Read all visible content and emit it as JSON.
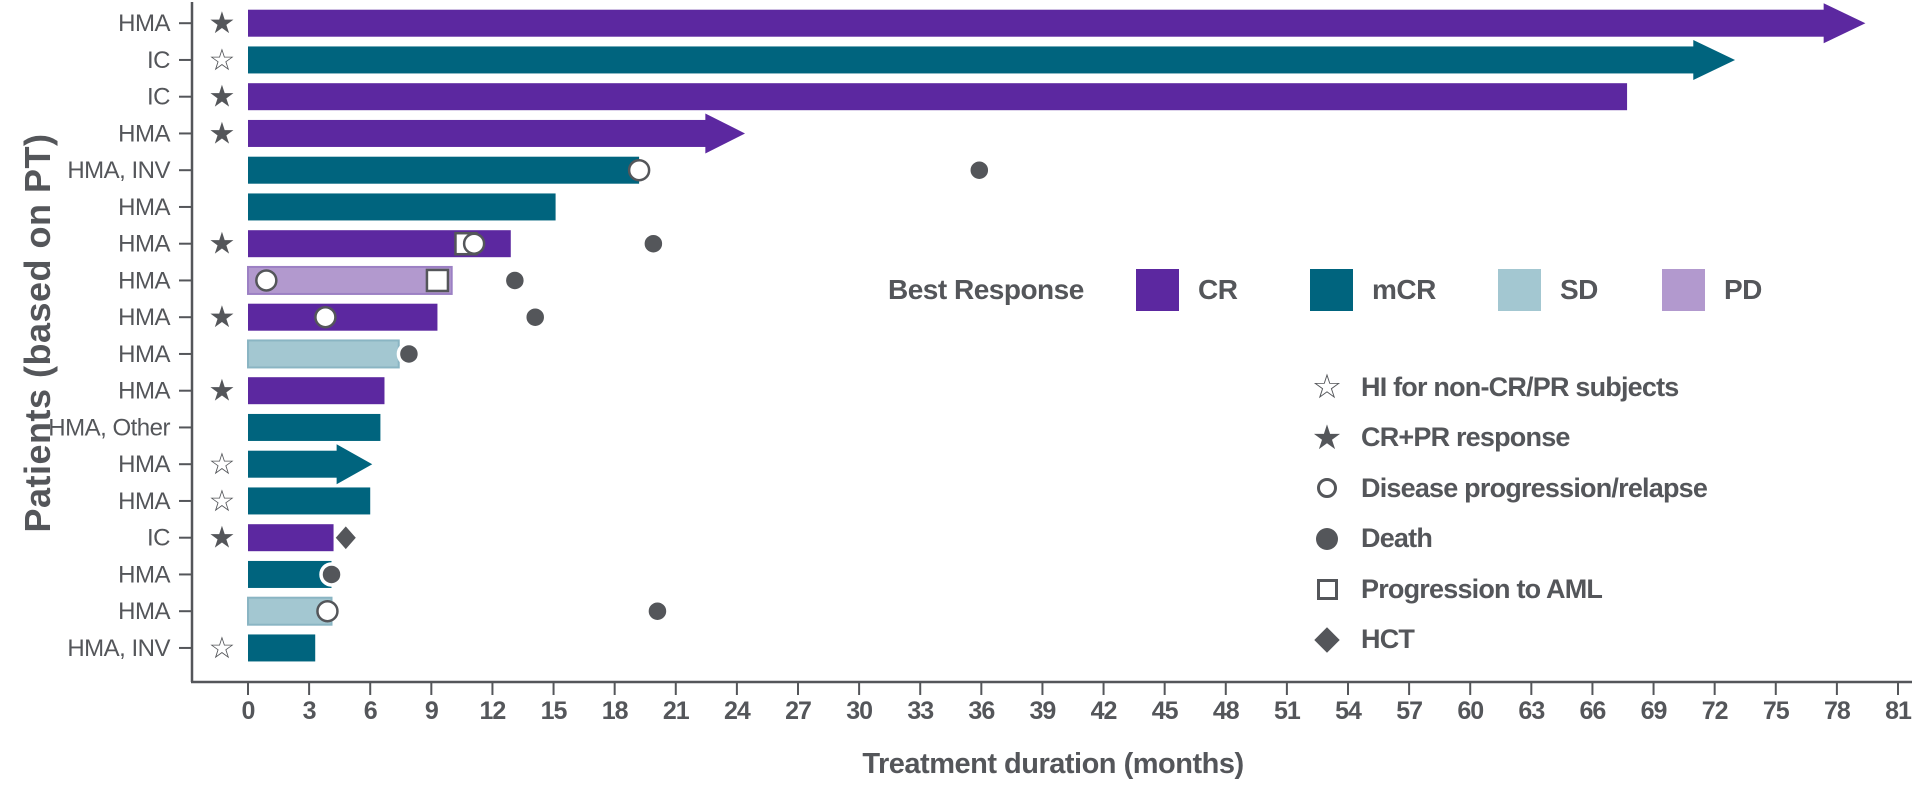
{
  "chart_data": {
    "type": "bar",
    "subtype": "horizontal-swimmer",
    "title": "",
    "xlabel": "Treatment duration (months)",
    "ylabel": "Patients (based on PT)",
    "xlim": [
      0,
      81
    ],
    "x_ticks": [
      0,
      3,
      6,
      9,
      12,
      15,
      18,
      21,
      24,
      27,
      30,
      33,
      36,
      39,
      42,
      45,
      48,
      51,
      54,
      57,
      60,
      63,
      66,
      69,
      72,
      75,
      78,
      81
    ],
    "grid": false,
    "colors": {
      "CR": "#5C28A0",
      "mCR": "#00647E",
      "SD": "#A3C7D1",
      "PD": "#B299CE",
      "SD_border": "#8AB5C3",
      "PD_border": "#9C80C4",
      "axis_gray": "#54565A",
      "marker_white": "#FFFFFF"
    },
    "best_response_legend": {
      "title": "Best Response",
      "items": [
        {
          "label": "CR",
          "color": "#5C28A0"
        },
        {
          "label": "mCR",
          "color": "#00647E"
        },
        {
          "label": "SD",
          "color": "#A3C7D1"
        },
        {
          "label": "PD",
          "color": "#B299CE"
        }
      ]
    },
    "symbol_legend": [
      {
        "symbol": "star-open",
        "label": "HI for non-CR/PR subjects"
      },
      {
        "symbol": "star-filled",
        "label": "CR+PR response"
      },
      {
        "symbol": "circle-open",
        "label": "Disease progression/relapse"
      },
      {
        "symbol": "circle-filled",
        "label": "Death"
      },
      {
        "symbol": "square-open",
        "label": "Progression to AML"
      },
      {
        "symbol": "diamond-filled",
        "label": "HCT"
      }
    ],
    "patients": [
      {
        "label": "HMA",
        "star": "filled",
        "response": "CR",
        "duration": 77.4,
        "arrow_to": 79.4,
        "markers": []
      },
      {
        "label": "IC",
        "star": "open",
        "response": "mCR",
        "duration": 71.0,
        "arrow_to": 73.0,
        "markers": []
      },
      {
        "label": "IC",
        "star": "filled",
        "response": "CR",
        "duration": 67.7,
        "arrow_to": null,
        "markers": []
      },
      {
        "label": "HMA",
        "star": "filled",
        "response": "CR",
        "duration": 22.5,
        "arrow_to": 24.4,
        "markers": []
      },
      {
        "label": "HMA, INV",
        "star": null,
        "response": "mCR",
        "duration": 19.2,
        "arrow_to": null,
        "markers": [
          {
            "type": "progression",
            "month": 19.2
          },
          {
            "type": "death",
            "month": 35.9
          }
        ]
      },
      {
        "label": "HMA",
        "star": null,
        "response": "mCR",
        "duration": 15.1,
        "arrow_to": null,
        "markers": []
      },
      {
        "label": "HMA",
        "star": "filled",
        "response": "CR",
        "duration": 12.9,
        "arrow_to": null,
        "markers": [
          {
            "type": "aml",
            "month": 10.7
          },
          {
            "type": "progression",
            "month": 11.1
          },
          {
            "type": "death",
            "month": 19.9
          }
        ]
      },
      {
        "label": "HMA",
        "star": null,
        "response": "PD",
        "duration": 10.0,
        "arrow_to": null,
        "markers": [
          {
            "type": "progression",
            "month": 0.9
          },
          {
            "type": "aml",
            "month": 9.3
          },
          {
            "type": "death",
            "month": 13.1
          }
        ]
      },
      {
        "label": "HMA",
        "star": "filled",
        "response": "CR",
        "duration": 9.3,
        "arrow_to": null,
        "markers": [
          {
            "type": "progression",
            "month": 3.8
          },
          {
            "type": "death",
            "month": 14.1
          }
        ]
      },
      {
        "label": "HMA",
        "star": null,
        "response": "SD",
        "duration": 7.4,
        "arrow_to": null,
        "markers": [
          {
            "type": "death",
            "month": 7.9
          }
        ]
      },
      {
        "label": "HMA",
        "star": "filled",
        "response": "CR",
        "duration": 6.7,
        "arrow_to": null,
        "markers": []
      },
      {
        "label": "HMA, Other",
        "star": null,
        "response": "mCR",
        "duration": 6.5,
        "arrow_to": null,
        "markers": []
      },
      {
        "label": "HMA",
        "star": "open",
        "response": "mCR",
        "duration": 4.4,
        "arrow_to": 6.1,
        "markers": []
      },
      {
        "label": "HMA",
        "star": "open",
        "response": "mCR",
        "duration": 6.0,
        "arrow_to": null,
        "markers": []
      },
      {
        "label": "IC",
        "star": "filled",
        "response": "CR",
        "duration": 4.2,
        "arrow_to": null,
        "markers": [
          {
            "type": "hct",
            "month": 4.8
          }
        ]
      },
      {
        "label": "HMA",
        "star": null,
        "response": "mCR",
        "duration": 4.1,
        "arrow_to": null,
        "markers": [
          {
            "type": "death",
            "month": 4.1
          }
        ]
      },
      {
        "label": "HMA",
        "star": null,
        "response": "SD",
        "duration": 4.1,
        "arrow_to": null,
        "markers": [
          {
            "type": "progression",
            "month": 3.9
          },
          {
            "type": "death",
            "month": 20.1
          }
        ]
      },
      {
        "label": "HMA, INV",
        "star": "open",
        "response": "mCR",
        "duration": 3.3,
        "arrow_to": null,
        "markers": []
      }
    ]
  }
}
